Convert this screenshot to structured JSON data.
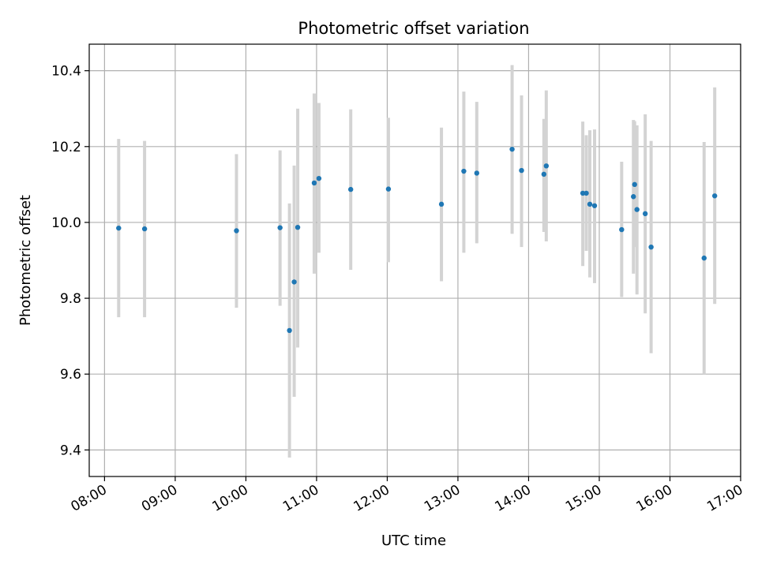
{
  "chart_data": {
    "type": "scatter",
    "title": "Photometric offset variation",
    "xlabel": "UTC time",
    "ylabel": "Photometric offset",
    "x_tick_labels": [
      "08:00",
      "09:00",
      "10:00",
      "11:00",
      "12:00",
      "13:00",
      "14:00",
      "15:00",
      "16:00",
      "17:00"
    ],
    "y_tick_labels": [
      "9.4",
      "9.6",
      "9.8",
      "10.0",
      "10.2",
      "10.4"
    ],
    "y_ticks": [
      9.4,
      9.6,
      9.8,
      10.0,
      10.2,
      10.4
    ],
    "xlim": [
      "07:47",
      "17:00"
    ],
    "ylim": [
      9.33,
      10.47
    ],
    "grid": true,
    "colors": {
      "point": "#1f77b4",
      "errorbar": "#d3d3d3",
      "grid": "#b0b0b0"
    },
    "points": [
      {
        "time": "08:12",
        "y": 9.985,
        "ylow": 9.75,
        "yhigh": 10.22
      },
      {
        "time": "08:34",
        "y": 9.983,
        "ylow": 9.75,
        "yhigh": 10.215
      },
      {
        "time": "09:52",
        "y": 9.978,
        "ylow": 9.775,
        "yhigh": 10.18
      },
      {
        "time": "10:29",
        "y": 9.986,
        "ylow": 9.78,
        "yhigh": 10.19
      },
      {
        "time": "10:37",
        "y": 9.715,
        "ylow": 9.38,
        "yhigh": 10.05
      },
      {
        "time": "10:41",
        "y": 9.843,
        "ylow": 9.54,
        "yhigh": 10.15
      },
      {
        "time": "10:44",
        "y": 9.987,
        "ylow": 9.67,
        "yhigh": 10.3
      },
      {
        "time": "10:58",
        "y": 10.104,
        "ylow": 9.865,
        "yhigh": 10.34
      },
      {
        "time": "11:02",
        "y": 10.116,
        "ylow": 9.92,
        "yhigh": 10.315
      },
      {
        "time": "11:29",
        "y": 10.087,
        "ylow": 9.875,
        "yhigh": 10.298
      },
      {
        "time": "12:01",
        "y": 10.088,
        "ylow": 9.895,
        "yhigh": 10.276
      },
      {
        "time": "12:46",
        "y": 10.048,
        "ylow": 9.845,
        "yhigh": 10.25
      },
      {
        "time": "13:05",
        "y": 10.135,
        "ylow": 9.92,
        "yhigh": 10.345
      },
      {
        "time": "13:16",
        "y": 10.13,
        "ylow": 9.945,
        "yhigh": 10.318
      },
      {
        "time": "13:46",
        "y": 10.193,
        "ylow": 9.97,
        "yhigh": 10.415
      },
      {
        "time": "13:54",
        "y": 10.137,
        "ylow": 9.935,
        "yhigh": 10.335
      },
      {
        "time": "14:13",
        "y": 10.127,
        "ylow": 9.975,
        "yhigh": 10.273
      },
      {
        "time": "14:15",
        "y": 10.149,
        "ylow": 9.95,
        "yhigh": 10.348
      },
      {
        "time": "14:46",
        "y": 10.077,
        "ylow": 9.885,
        "yhigh": 10.266
      },
      {
        "time": "14:49",
        "y": 10.077,
        "ylow": 9.925,
        "yhigh": 10.23
      },
      {
        "time": "14:52",
        "y": 10.048,
        "ylow": 9.855,
        "yhigh": 10.243
      },
      {
        "time": "14:56",
        "y": 10.044,
        "ylow": 9.84,
        "yhigh": 10.245
      },
      {
        "time": "15:19",
        "y": 9.981,
        "ylow": 9.803,
        "yhigh": 10.16
      },
      {
        "time": "15:29",
        "y": 10.068,
        "ylow": 9.865,
        "yhigh": 10.27
      },
      {
        "time": "15:30",
        "y": 10.1,
        "ylow": 9.935,
        "yhigh": 10.267
      },
      {
        "time": "15:32",
        "y": 10.034,
        "ylow": 9.81,
        "yhigh": 10.256
      },
      {
        "time": "15:39",
        "y": 10.023,
        "ylow": 9.76,
        "yhigh": 10.285
      },
      {
        "time": "15:44",
        "y": 9.935,
        "ylow": 9.655,
        "yhigh": 10.215
      },
      {
        "time": "16:29",
        "y": 9.906,
        "ylow": 9.6,
        "yhigh": 10.212
      },
      {
        "time": "16:38",
        "y": 10.07,
        "ylow": 9.785,
        "yhigh": 10.356
      }
    ]
  }
}
